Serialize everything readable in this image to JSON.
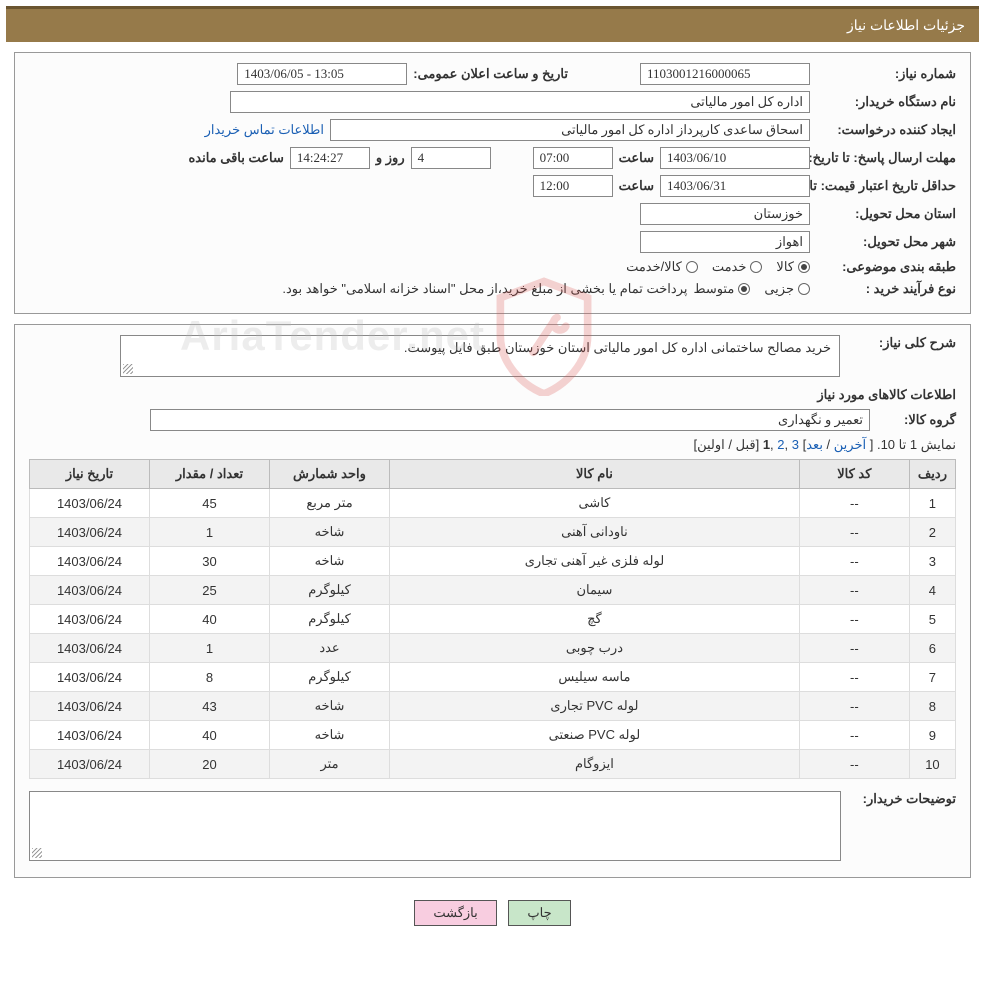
{
  "header": {
    "title": "جزئیات اطلاعات نیاز"
  },
  "form": {
    "need_number_label": "شماره نیاز:",
    "need_number": "1103001216000065",
    "announce_datetime_label": "تاریخ و ساعت اعلان عمومی:",
    "announce_datetime": "1403/06/05 - 13:05",
    "buyer_org_label": "نام دستگاه خریدار:",
    "buyer_org": "اداره کل امور مالیاتی",
    "requester_label": "ایجاد کننده درخواست:",
    "requester": "اسحاق ساعدی کارپرداز اداره کل امور مالیاتی",
    "buyer_contact_link": "اطلاعات تماس خریدار",
    "deadline_send_label": "مهلت ارسال پاسخ:",
    "until_date_label": "تا تاریخ:",
    "deadline_date": "1403/06/10",
    "time_label": "ساعت",
    "deadline_time": "07:00",
    "days_label": "روز و",
    "days_remaining": "4",
    "remaining_time": "14:24:27",
    "remaining_suffix": "ساعت باقی مانده",
    "min_valid_label": "حداقل تاریخ اعتبار قیمت:",
    "min_valid_date": "1403/06/31",
    "min_valid_time": "12:00",
    "delivery_province_label": "استان محل تحویل:",
    "delivery_province": "خوزستان",
    "delivery_city_label": "شهر محل تحویل:",
    "delivery_city": "اهواز",
    "category_label": "طبقه بندی موضوعی:",
    "radio_goods": "کالا",
    "radio_service": "خدمت",
    "radio_goods_service": "کالا/خدمت",
    "process_type_label": "نوع فرآیند خرید :",
    "radio_partial": "جزیی",
    "radio_medium": "متوسط",
    "process_note": "پرداخت تمام یا بخشی از مبلغ خرید،از محل \"اسناد خزانه اسلامی\" خواهد بود."
  },
  "detail": {
    "overall_label": "شرح کلی نیاز:",
    "overall_text": "خرید مصالح ساختمانی اداره کل امور مالیاتی استان خوزستان طبق فایل پیوست.",
    "goods_info_title": "اطلاعات کالاهای مورد نیاز",
    "goods_group_label": "گروه کالا:",
    "goods_group": "تعمیر و نگهداری",
    "pager_text_a": "نمایش 1 تا 10. [ ",
    "pager_last": "آخرین",
    "pager_sep1": " / ",
    "pager_next": "بعد",
    "pager_brkt": "] ",
    "pager_p3": "3",
    "pager_c1": " ,",
    "pager_p2": "2",
    "pager_c2": " ,",
    "pager_p1": "1",
    "pager_tail": " [قبل / اولین]",
    "buyer_note_label": "توضیحات خریدار:",
    "buyer_note_text": ""
  },
  "table": {
    "columns": [
      "ردیف",
      "کد کالا",
      "نام کالا",
      "واحد شمارش",
      "تعداد / مقدار",
      "تاریخ نیاز"
    ],
    "rows": [
      [
        "1",
        "--",
        "کاشی",
        "متر مربع",
        "45",
        "1403/06/24"
      ],
      [
        "2",
        "--",
        "ناودانی آهنی",
        "شاخه",
        "1",
        "1403/06/24"
      ],
      [
        "3",
        "--",
        "لوله فلزی غیر آهنی تجاری",
        "شاخه",
        "30",
        "1403/06/24"
      ],
      [
        "4",
        "--",
        "سیمان",
        "کیلوگرم",
        "25",
        "1403/06/24"
      ],
      [
        "5",
        "--",
        "گچ",
        "کیلوگرم",
        "40",
        "1403/06/24"
      ],
      [
        "6",
        "--",
        "درب چوبی",
        "عدد",
        "1",
        "1403/06/24"
      ],
      [
        "7",
        "--",
        "ماسه سیلیس",
        "کیلوگرم",
        "8",
        "1403/06/24"
      ],
      [
        "8",
        "--",
        "لوله PVC تجاری",
        "شاخه",
        "43",
        "1403/06/24"
      ],
      [
        "9",
        "--",
        "لوله PVC صنعتی",
        "شاخه",
        "40",
        "1403/06/24"
      ],
      [
        "10",
        "--",
        "ایزوگام",
        "متر",
        "20",
        "1403/06/24"
      ]
    ]
  },
  "buttons": {
    "print": "چاپ",
    "back": "بازگشت"
  },
  "watermark": {
    "text": "AriaTender.net"
  },
  "colors": {
    "header_bg": "#967a4a",
    "header_border": "#6b5530",
    "panel_border": "#999999",
    "link": "#1a5fb4",
    "btn_print": "#c8e6c9",
    "btn_back": "#f8cde0",
    "th_bg": "#e9e9e9"
  }
}
